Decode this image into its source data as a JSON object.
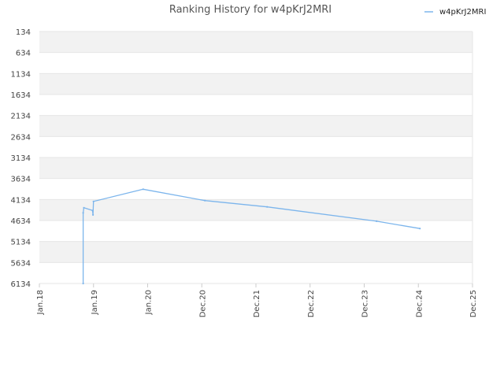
{
  "chart_data": {
    "type": "line",
    "title": "Ranking History for w4pKrJ2MRI",
    "xlabel": "",
    "ylabel": "",
    "legend_position": "top-right",
    "y_inverted": true,
    "ylim": [
      134,
      6134
    ],
    "yticks": [
      134,
      634,
      1134,
      1634,
      2134,
      2634,
      3134,
      3634,
      4134,
      4634,
      5134,
      5634,
      6134
    ],
    "x_range": [
      "2018-01",
      "2025-12"
    ],
    "xticks": [
      "Jan.18",
      "Jan.19",
      "Jan.20",
      "Dec.20",
      "Dec.21",
      "Dec.22",
      "Dec.23",
      "Dec.24",
      "Dec.25"
    ],
    "grid": true,
    "colors": {
      "series": "#7cb5ec",
      "band": "#f2f2f2",
      "grid": "#e6e6e6"
    },
    "series": [
      {
        "name": "w4pKrJ2MRI",
        "points": [
          {
            "x": "2018-10-20",
            "y": 6134
          },
          {
            "x": "2018-10-20",
            "y": 4450
          },
          {
            "x": "2018-10-25",
            "y": 4330
          },
          {
            "x": "2018-12-22",
            "y": 4395
          },
          {
            "x": "2018-12-25",
            "y": 4500
          },
          {
            "x": "2018-12-28",
            "y": 4180
          },
          {
            "x": "2019-11-25",
            "y": 3890
          },
          {
            "x": "2021-01-10",
            "y": 4160
          },
          {
            "x": "2022-03-01",
            "y": 4310
          },
          {
            "x": "2024-03-01",
            "y": 4650
          },
          {
            "x": "2024-12-15",
            "y": 4825
          }
        ]
      }
    ]
  }
}
